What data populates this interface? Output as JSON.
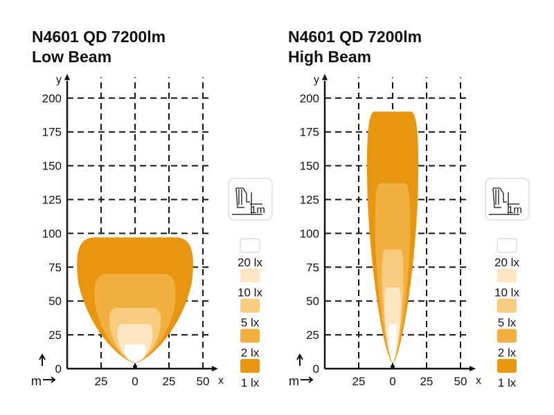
{
  "chart_data": [
    {
      "type": "area",
      "title": "N4601 QD 7200lm",
      "subtitle": "Low Beam",
      "xlabel": "x",
      "ylabel": "y",
      "unit_label": "m",
      "x_ticks": [
        "25",
        "0",
        "25",
        "50"
      ],
      "y_ticks": [
        "0",
        "25",
        "50",
        "75",
        "100",
        "125",
        "150",
        "175",
        "200"
      ],
      "xlim": [
        -50,
        50
      ],
      "ylim": [
        0,
        200
      ],
      "grid": true,
      "mount_icon_label": "1m",
      "legend": [
        "20 lx",
        "10 lx",
        "5 lx",
        "2 lx",
        "1 lx"
      ],
      "legend_colors": [
        "#FFFFFF",
        "#FCE6C4",
        "#F8CC7E",
        "#F2B040",
        "#E8960F"
      ],
      "isolux": [
        {
          "level": "1 lx",
          "max_reach_m": 97,
          "half_width_m": 43
        },
        {
          "level": "2 lx",
          "max_reach_m": 70,
          "half_width_m": 30
        },
        {
          "level": "5 lx",
          "max_reach_m": 45,
          "half_width_m": 19
        },
        {
          "level": "10 lx",
          "max_reach_m": 33,
          "half_width_m": 13
        },
        {
          "level": "20 lx",
          "max_reach_m": 18,
          "half_width_m": 8
        }
      ]
    },
    {
      "type": "area",
      "title": "N4601 QD 7200lm",
      "subtitle": "High Beam",
      "xlabel": "x",
      "ylabel": "y",
      "unit_label": "m",
      "x_ticks": [
        "25",
        "0",
        "25",
        "50"
      ],
      "y_ticks": [
        "0",
        "25",
        "50",
        "75",
        "100",
        "125",
        "150",
        "175",
        "200"
      ],
      "xlim": [
        -50,
        50
      ],
      "ylim": [
        0,
        200
      ],
      "grid": true,
      "mount_icon_label": "1m",
      "legend": [
        "20 lx",
        "10 lx",
        "5 lx",
        "2 lx",
        "1 lx"
      ],
      "legend_colors": [
        "#FFFFFF",
        "#FCE6C4",
        "#F8CC7E",
        "#F2B040",
        "#E8960F"
      ],
      "isolux": [
        {
          "level": "1 lx",
          "max_reach_m": 190,
          "half_width_m": 19
        },
        {
          "level": "2 lx",
          "max_reach_m": 137,
          "half_width_m": 13
        },
        {
          "level": "5 lx",
          "max_reach_m": 88,
          "half_width_m": 8
        },
        {
          "level": "10 lx",
          "max_reach_m": 60,
          "half_width_m": 6
        },
        {
          "level": "20 lx",
          "max_reach_m": 33,
          "half_width_m": 3
        }
      ]
    }
  ]
}
